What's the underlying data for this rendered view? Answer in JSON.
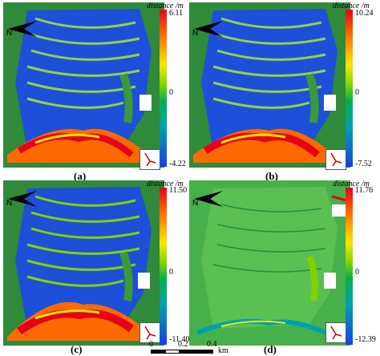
{
  "colorbar_title": "distance /m",
  "panels": [
    {
      "label": "(a)",
      "max": "6.11",
      "zero": "0",
      "min": "-4.22"
    },
    {
      "label": "(b)",
      "max": "10.24",
      "zero": "0",
      "min": "-7.52"
    },
    {
      "label": "(c)",
      "max": "11.50",
      "zero": "0",
      "min": "-11.40"
    },
    {
      "label": "(d)",
      "max": "11.76",
      "zero": "0",
      "min": "-12.39"
    }
  ],
  "scale": {
    "t0": "0",
    "t1": "0.2",
    "t2": "0.4",
    "unit": "km"
  },
  "colors": {
    "high": "#e8001a",
    "mid": "#00b050",
    "low": "#1b3fe0",
    "background": "#2f8a3a"
  }
}
